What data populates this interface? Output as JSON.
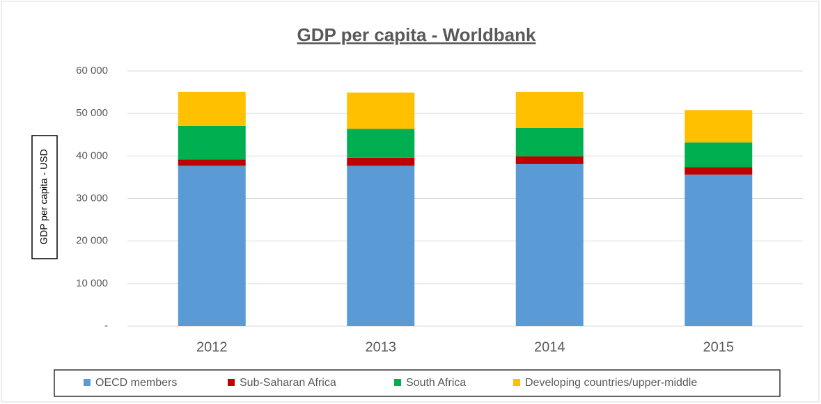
{
  "chart_data": {
    "type": "stacked_bar",
    "title": "GDP per capita - Worldbank",
    "y_label": "GDP per capita - USD",
    "categories": [
      "2012",
      "2013",
      "2014",
      "2015"
    ],
    "series": [
      {
        "name": "OECD members",
        "color": "#5b9bd5",
        "values": [
          37700,
          37700,
          38100,
          35600
        ]
      },
      {
        "name": "Sub-Saharan Africa",
        "color": "#c00000",
        "values": [
          1500,
          1900,
          1800,
          1800
        ]
      },
      {
        "name": "South Africa",
        "color": "#00b050",
        "values": [
          7900,
          6800,
          6700,
          5800
        ]
      },
      {
        "name": "Developing countries/upper-middle",
        "color": "#ffc000",
        "values": [
          8000,
          8500,
          8500,
          7600
        ]
      }
    ],
    "ylim": [
      0,
      60000
    ],
    "yticks": [
      {
        "value": 0,
        "label": "-"
      },
      {
        "value": 10000,
        "label": "10 000"
      },
      {
        "value": 20000,
        "label": "20 000"
      },
      {
        "value": 30000,
        "label": "30 000"
      },
      {
        "value": 40000,
        "label": "40 000"
      },
      {
        "value": 50000,
        "label": "50 000"
      },
      {
        "value": 60000,
        "label": "60 000"
      }
    ],
    "grid": true
  }
}
